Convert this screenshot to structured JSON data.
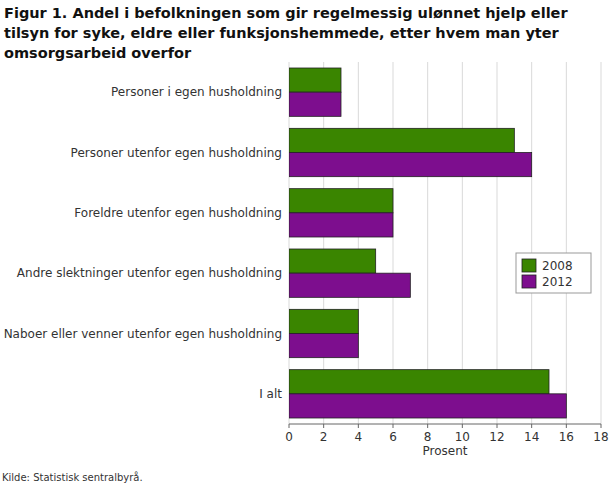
{
  "chart_data": {
    "type": "bar",
    "orientation": "horizontal",
    "title": "Figur 1. Andel i befolkningen som gir regelmessig ulønnet hjelp eller tilsyn for syke, eldre eller funksjonshemmede, etter hvem man yter omsorgsarbeid overfor",
    "x_label": "Prosent",
    "source": "Kilde: Statistisk sentralbyrå.",
    "categories": [
      "Personer i egen husholdning",
      "Personer utenfor egen husholdning",
      "Foreldre utenfor egen husholdning",
      "Andre slektninger utenfor egen husholdning",
      "Naboer eller venner utenfor egen husholdning",
      "I alt"
    ],
    "series": [
      {
        "name": "2008",
        "color": "#3a8500",
        "values": [
          3,
          13,
          6,
          5,
          4,
          15
        ]
      },
      {
        "name": "2012",
        "color": "#7d0e8e",
        "values": [
          3,
          14,
          6,
          7,
          4,
          16
        ]
      }
    ],
    "xlim": [
      0,
      18
    ],
    "xticks": [
      0,
      2,
      4,
      6,
      8,
      10,
      12,
      14,
      16,
      18
    ],
    "grid": true,
    "legend": "right"
  }
}
